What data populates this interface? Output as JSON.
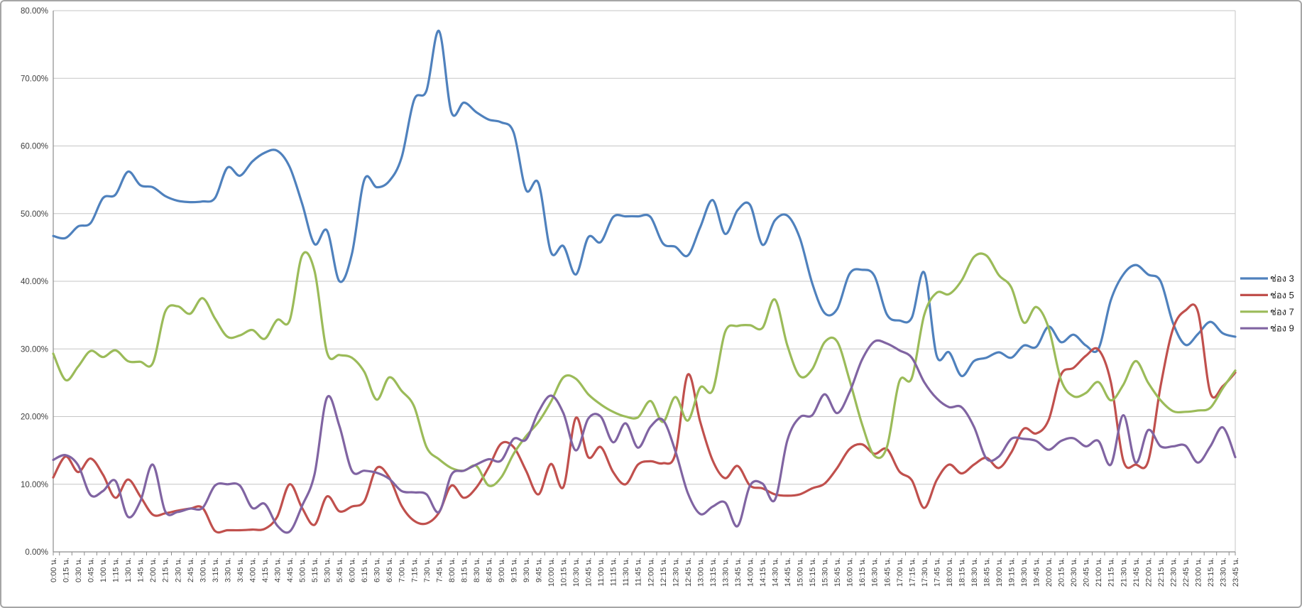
{
  "chart_data": {
    "type": "line",
    "title": "",
    "xlabel": "",
    "ylabel": "",
    "grid": true,
    "smooth": true,
    "legend_position": "right",
    "y_axis": {
      "min": 0,
      "max": 80,
      "step": 10,
      "tick_labels": [
        "80.00%",
        "70.00%",
        "60.00%",
        "50.00%",
        "40.00%",
        "30.00%",
        "20.00%",
        "10.00%",
        "0.00%"
      ]
    },
    "x_categories": [
      "0:00 น.",
      "0:15 น.",
      "0:30 น.",
      "0:45 น.",
      "1:00 น.",
      "1:15 น.",
      "1:30 น.",
      "1:45 น.",
      "2:00 น.",
      "2:15 น.",
      "2:30 น.",
      "2:45 น.",
      "3:00 น.",
      "3:15 น.",
      "3:30 น.",
      "3:45 น.",
      "4:00 น.",
      "4:15 น.",
      "4:30 น.",
      "4:45 น.",
      "5:00 น.",
      "5:15 น.",
      "5:30 น.",
      "5:45 น.",
      "6:00 น.",
      "6:15 น.",
      "6:30 น.",
      "6:45 น.",
      "7:00 น.",
      "7:15 น.",
      "7:30 น.",
      "7:45 น.",
      "8:00 น.",
      "8:15 น.",
      "8:30 น.",
      "8:45 น.",
      "9:00 น.",
      "9:15 น.",
      "9:30 น.",
      "9:45 น.",
      "10:00 น.",
      "10:15 น.",
      "10:30 น.",
      "10:45 น.",
      "11:00 น.",
      "11:15 น.",
      "11:30 น.",
      "11:45 น.",
      "12:00 น.",
      "12:15 น.",
      "12:30 น.",
      "12:45 น.",
      "13:00 น.",
      "13:15 น.",
      "13:30 น.",
      "13:45 น.",
      "14:00 น.",
      "14:15 น.",
      "14:30 น.",
      "14:45 น.",
      "15:00 น.",
      "15:15 น.",
      "15:30 น.",
      "15:45 น.",
      "16:00 น.",
      "16:15 น.",
      "16:30 น.",
      "16:45 น.",
      "17:00 น.",
      "17:15 น.",
      "17:30 น.",
      "17:45 น.",
      "18:00 น.",
      "18:15 น.",
      "18:30 น.",
      "18:45 น.",
      "19:00 น.",
      "19:15 น.",
      "19:30 น.",
      "19:45 น.",
      "20:00 น.",
      "20:15 น.",
      "20:30 น.",
      "20:45 น.",
      "21:00 น.",
      "21:15 น.",
      "21:30 น.",
      "21:45 น.",
      "22:00 น.",
      "22:15 น.",
      "22:30 น.",
      "22:45 น.",
      "23:00 น.",
      "23:15 น.",
      "23:30 น.",
      "23:45 น."
    ],
    "series": [
      {
        "name": "ช่อง 3",
        "color": "#4F81BD",
        "values": [
          46.7,
          46.4,
          48.1,
          48.6,
          52.3,
          52.8,
          56.2,
          54.2,
          53.9,
          52.6,
          51.9,
          51.7,
          51.8,
          52.3,
          56.8,
          55.6,
          57.7,
          59.0,
          59.3,
          56.9,
          51.5,
          45.5,
          47.5,
          40.0,
          44.0,
          55.0,
          53.9,
          54.8,
          58.3,
          66.8,
          68.2,
          77.0,
          65.0,
          66.4,
          65.0,
          63.9,
          63.5,
          62.0,
          53.5,
          54.5,
          44.3,
          45.2,
          41.0,
          46.5,
          45.8,
          49.5,
          49.6,
          49.6,
          49.5,
          45.6,
          45.1,
          43.8,
          48.0,
          52.0,
          47.0,
          50.5,
          51.3,
          45.4,
          49.0,
          49.7,
          46.4,
          39.7,
          35.3,
          35.9,
          41.1,
          41.7,
          40.8,
          35.1,
          34.2,
          34.6,
          41.3,
          29.0,
          29.5,
          26.0,
          28.2,
          28.7,
          29.5,
          28.7,
          30.5,
          30.3,
          33.3,
          31.0,
          32.1,
          30.5,
          30.0,
          37.2,
          41.0,
          42.4,
          41.0,
          40.0,
          33.8,
          30.6,
          32.2,
          34.0,
          32.3,
          31.8
        ]
      },
      {
        "name": "ช่อง 5",
        "color": "#C0504D",
        "values": [
          11.0,
          14.1,
          11.8,
          13.8,
          11.4,
          8.0,
          10.7,
          8.2,
          5.5,
          5.7,
          6.1,
          6.4,
          6.5,
          3.1,
          3.2,
          3.2,
          3.3,
          3.4,
          5.2,
          10.0,
          6.5,
          4.0,
          8.2,
          6.0,
          6.7,
          7.5,
          12.4,
          11.0,
          6.8,
          4.6,
          4.2,
          5.8,
          9.8,
          8.0,
          9.5,
          12.5,
          16.0,
          15.5,
          12.0,
          8.5,
          13.0,
          9.6,
          19.8,
          14.0,
          15.5,
          11.8,
          10.0,
          12.9,
          13.4,
          13.1,
          14.5,
          26.2,
          19.2,
          13.5,
          10.9,
          12.7,
          9.8,
          9.4,
          8.5,
          8.3,
          8.5,
          9.4,
          10.1,
          12.4,
          15.2,
          15.9,
          14.5,
          15.2,
          11.9,
          10.6,
          6.5,
          10.6,
          12.9,
          11.6,
          12.9,
          13.9,
          12.4,
          14.7,
          18.2,
          17.5,
          19.5,
          26.2,
          27.2,
          29.0,
          29.9,
          25.1,
          13.5,
          12.9,
          13.4,
          24.5,
          33.0,
          35.7,
          35.5,
          23.5,
          24.5,
          26.5
        ]
      },
      {
        "name": "ช่อง 7",
        "color": "#9BBB59",
        "values": [
          29.3,
          25.4,
          27.4,
          29.7,
          28.8,
          29.8,
          28.2,
          28.1,
          27.9,
          35.5,
          36.3,
          35.2,
          37.5,
          34.5,
          31.8,
          32.0,
          32.8,
          31.5,
          34.3,
          34.2,
          43.8,
          41.5,
          29.5,
          29.1,
          28.7,
          26.6,
          22.5,
          25.8,
          23.8,
          21.5,
          15.5,
          13.7,
          12.4,
          12.0,
          12.7,
          9.8,
          11.0,
          14.5,
          17.1,
          19.2,
          22.2,
          25.8,
          25.6,
          23.3,
          21.8,
          20.7,
          20.0,
          19.9,
          22.3,
          19.2,
          22.9,
          19.4,
          24.3,
          23.9,
          32.5,
          33.4,
          33.5,
          33.1,
          37.3,
          30.5,
          26.0,
          27.0,
          31.0,
          31.1,
          25.4,
          18.9,
          14.2,
          15.5,
          25.2,
          25.7,
          35.0,
          38.3,
          38.1,
          40.1,
          43.6,
          43.8,
          40.9,
          39.1,
          33.9,
          36.2,
          33.1,
          25.4,
          23.0,
          23.5,
          25.1,
          22.4,
          24.7,
          28.2,
          25.0,
          22.4,
          20.8,
          20.7,
          20.9,
          21.3,
          24.2,
          26.8
        ]
      },
      {
        "name": "ช่อง 9",
        "color": "#8064A2",
        "values": [
          13.6,
          14.3,
          12.8,
          8.4,
          9.0,
          10.5,
          5.2,
          7.5,
          12.9,
          6.0,
          5.9,
          6.4,
          6.5,
          9.8,
          10.0,
          9.8,
          6.5,
          7.1,
          3.9,
          3.0,
          6.8,
          11.5,
          22.8,
          18.6,
          12.0,
          12.0,
          11.7,
          10.8,
          9.0,
          8.8,
          8.5,
          5.9,
          11.4,
          12.0,
          12.9,
          13.7,
          13.5,
          16.7,
          16.6,
          20.7,
          23.1,
          20.5,
          15.0,
          19.7,
          20.0,
          16.2,
          19.0,
          15.4,
          18.5,
          19.5,
          14.9,
          8.7,
          5.6,
          6.7,
          7.3,
          3.8,
          9.8,
          10.1,
          7.7,
          16.5,
          19.9,
          20.2,
          23.3,
          20.5,
          23.6,
          28.4,
          31.1,
          30.8,
          29.8,
          28.7,
          25.1,
          22.7,
          21.4,
          21.4,
          18.5,
          13.8,
          14.1,
          16.7,
          16.7,
          16.4,
          15.1,
          16.4,
          16.8,
          15.6,
          16.4,
          12.9,
          20.2,
          13.2,
          18.0,
          15.6,
          15.6,
          15.7,
          13.2,
          15.6,
          18.4,
          14.0
        ]
      }
    ]
  },
  "legend": {
    "items": [
      {
        "label": "ช่อง 3",
        "color": "#4F81BD"
      },
      {
        "label": "ช่อง 5",
        "color": "#C0504D"
      },
      {
        "label": "ช่อง 7",
        "color": "#9BBB59"
      },
      {
        "label": "ช่อง 9",
        "color": "#8064A2"
      }
    ]
  },
  "colors": {
    "background": "#FFFFFF",
    "frame_border": "#A6A6A6",
    "gridline": "#C6C6C6",
    "axis_line": "#8C8C8C",
    "tick_label": "#3F3F3F",
    "legend_text": "#1A1A1A"
  }
}
